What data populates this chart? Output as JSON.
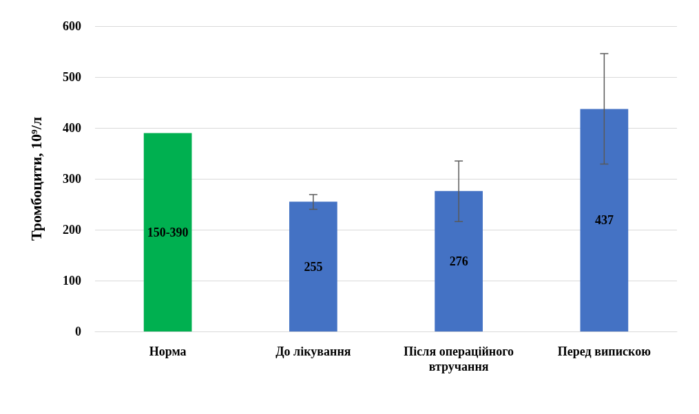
{
  "chart_data": {
    "type": "bar",
    "ylabel": "Тромбоцити, 10⁹/л",
    "categories": [
      "Норма",
      "До лікування",
      "Після операційного втручання",
      "Перед випискою"
    ],
    "values": [
      390,
      255,
      276,
      437
    ],
    "colors": [
      "#00b050",
      "#4472c4",
      "#4472c4",
      "#4472c4"
    ],
    "value_labels": [
      "150-390",
      "255",
      "276",
      "437"
    ],
    "errors": [
      null,
      [
        240,
        269
      ],
      [
        216,
        335
      ],
      [
        329,
        546
      ]
    ],
    "ylim": [
      0,
      600
    ],
    "yticks": [
      0,
      100,
      200,
      300,
      400,
      500,
      600
    ],
    "grid": "y"
  }
}
